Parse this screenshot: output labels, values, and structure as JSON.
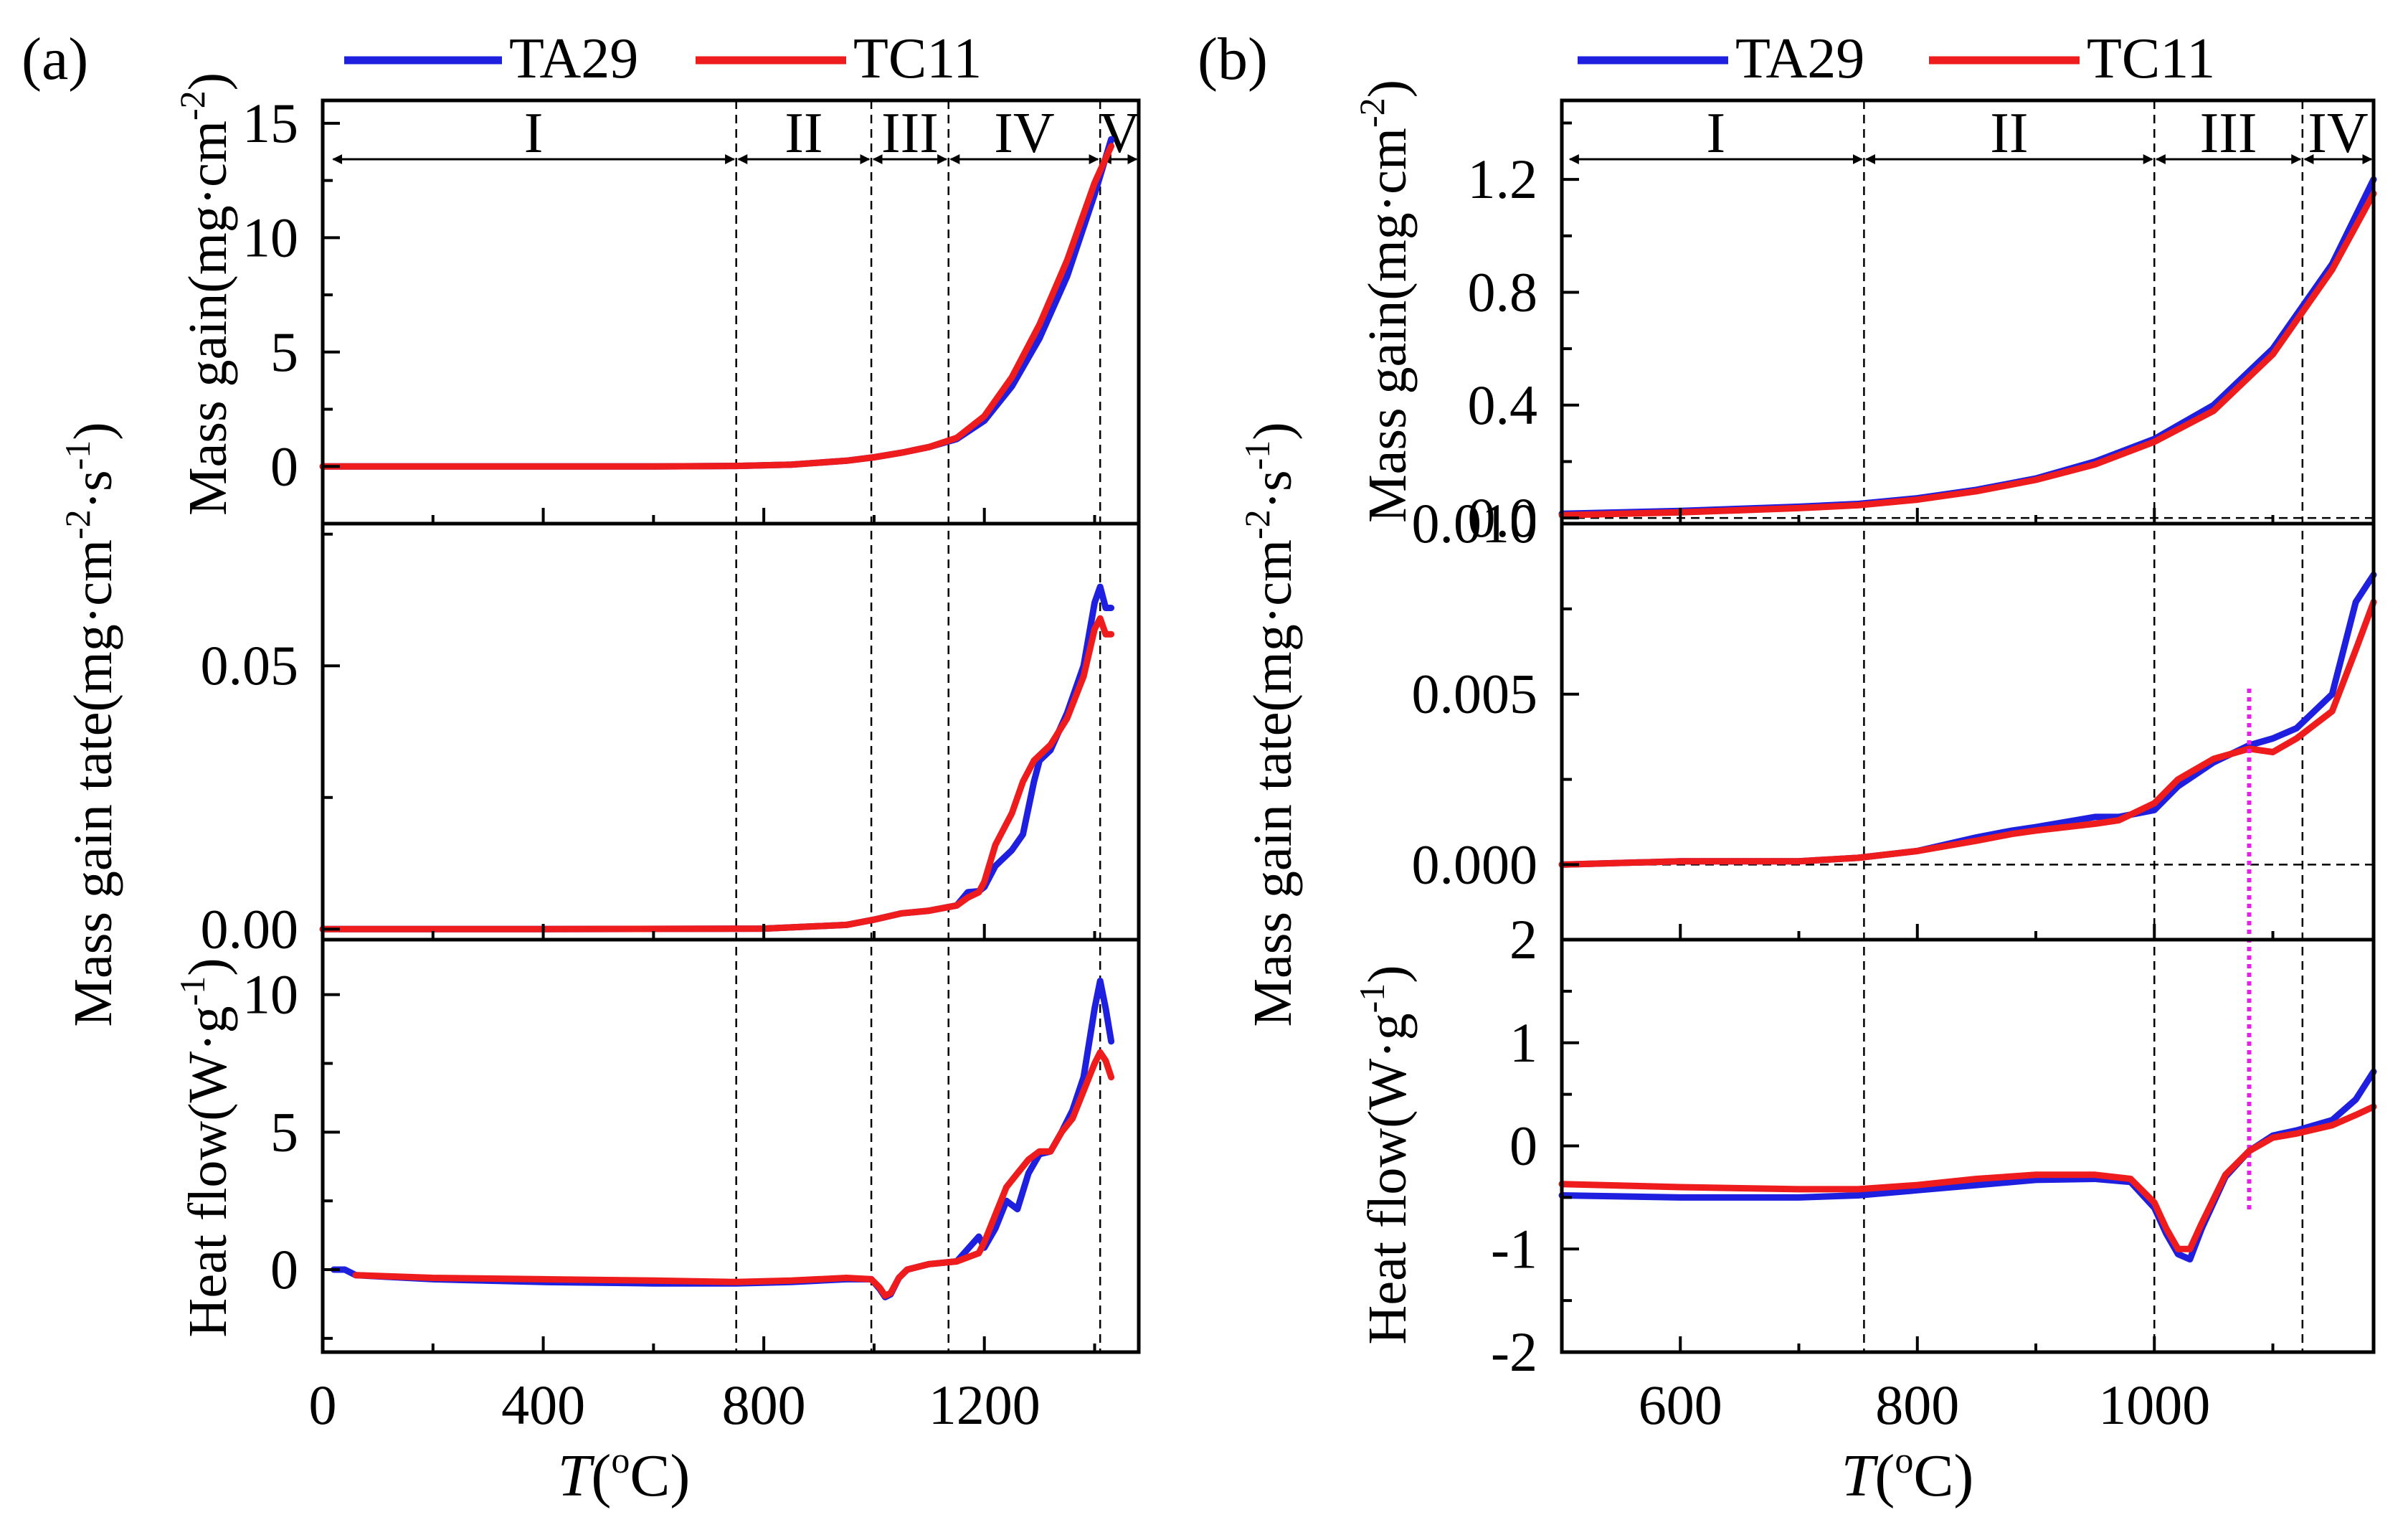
{
  "figure": {
    "panels": [
      "(a)",
      "(b)"
    ],
    "legend": [
      {
        "name": "TA29",
        "color": "#1f1fe0"
      },
      {
        "name": "TC11",
        "color": "#ee1c1c"
      }
    ],
    "superscripts": {
      "cm": "-2",
      "s": "-1",
      "g": "-1",
      "deg": "o"
    }
  },
  "chart_data": [
    {
      "id": "a",
      "type": "line",
      "panel_label": "(a)",
      "xlabel": "T(oC)",
      "xlabel_parts": {
        "italic": "T",
        "open": "(",
        "sup": "o",
        "close": "C)"
      },
      "xlim": [
        0,
        1480
      ],
      "xticks": [
        0,
        400,
        800,
        1200
      ],
      "regions": {
        "labels": [
          "I",
          "II",
          "III",
          "IV",
          "V"
        ],
        "boundaries": [
          15,
          750,
          995,
          1135,
          1410,
          1480
        ]
      },
      "subplots": [
        {
          "name": "mass-gain",
          "ylabel": "Mass gain(mg·cm-2)",
          "ylabel_parts": {
            "base": "Mass gain(mg·cm",
            "sup": "-2",
            "close": ")"
          },
          "ylim": [
            -2.5,
            16
          ],
          "yticks": [
            0,
            5,
            10,
            15
          ],
          "series": [
            {
              "name": "TA29",
              "x": [
                0,
                200,
                400,
                600,
                750,
                850,
                950,
                1000,
                1050,
                1100,
                1150,
                1200,
                1250,
                1300,
                1350,
                1400,
                1430
              ],
              "y": [
                0,
                0,
                0,
                0,
                0.02,
                0.08,
                0.25,
                0.4,
                0.6,
                0.85,
                1.2,
                2.0,
                3.5,
                5.6,
                8.3,
                11.9,
                14.3
              ]
            },
            {
              "name": "TC11",
              "x": [
                0,
                200,
                400,
                600,
                750,
                850,
                950,
                1000,
                1050,
                1100,
                1150,
                1200,
                1250,
                1300,
                1350,
                1400,
                1430
              ],
              "y": [
                0,
                0,
                0,
                0,
                0.02,
                0.08,
                0.25,
                0.4,
                0.6,
                0.85,
                1.25,
                2.2,
                3.9,
                6.2,
                9.0,
                12.4,
                14.0
              ]
            }
          ]
        },
        {
          "name": "mass-gain-rate",
          "ylabel": "Mass gain tate(mg·cm-2·s-1)",
          "ylim": [
            -0.002,
            0.077
          ],
          "yticks": [
            0.0,
            0.05
          ],
          "ytick_labels": [
            "0.00",
            "0.05"
          ],
          "series": [
            {
              "name": "TA29",
              "x": [
                0,
                400,
                800,
                950,
                1000,
                1050,
                1100,
                1150,
                1170,
                1190,
                1200,
                1220,
                1250,
                1270,
                1290,
                1300,
                1320,
                1350,
                1380,
                1400,
                1410,
                1420,
                1430
              ],
              "y": [
                0,
                0,
                0.0001,
                0.0008,
                0.0018,
                0.003,
                0.0035,
                0.0045,
                0.007,
                0.0072,
                0.008,
                0.012,
                0.015,
                0.018,
                0.028,
                0.032,
                0.034,
                0.041,
                0.05,
                0.062,
                0.065,
                0.061,
                0.061
              ]
            },
            {
              "name": "TC11",
              "x": [
                0,
                400,
                800,
                950,
                1000,
                1050,
                1100,
                1150,
                1170,
                1190,
                1200,
                1220,
                1250,
                1270,
                1290,
                1300,
                1320,
                1350,
                1380,
                1400,
                1410,
                1420,
                1430
              ],
              "y": [
                0,
                0,
                0.0001,
                0.0008,
                0.0018,
                0.003,
                0.0035,
                0.0045,
                0.006,
                0.007,
                0.009,
                0.016,
                0.022,
                0.028,
                0.032,
                0.033,
                0.035,
                0.04,
                0.048,
                0.057,
                0.059,
                0.056,
                0.056
              ]
            }
          ]
        },
        {
          "name": "heat-flow",
          "ylabel": "Heat flow(W·g-1)",
          "ylabel_parts": {
            "base": "Heat flow(W·g",
            "sup": "-1",
            "close": ")"
          },
          "ylim": [
            -3,
            12
          ],
          "yticks": [
            0,
            5,
            10
          ],
          "series": [
            {
              "name": "TA29",
              "x": [
                20,
                40,
                60,
                200,
                400,
                600,
                750,
                850,
                950,
                995,
                1010,
                1020,
                1030,
                1045,
                1060,
                1100,
                1150,
                1190,
                1200,
                1220,
                1240,
                1260,
                1280,
                1300,
                1320,
                1340,
                1360,
                1380,
                1400,
                1410,
                1420,
                1430
              ],
              "y": [
                0,
                0,
                -0.2,
                -0.35,
                -0.45,
                -0.5,
                -0.5,
                -0.45,
                -0.35,
                -0.35,
                -0.7,
                -1.0,
                -0.9,
                -0.3,
                0.0,
                0.2,
                0.3,
                1.2,
                0.8,
                1.5,
                2.5,
                2.2,
                3.5,
                4.2,
                4.3,
                5.0,
                5.8,
                7.0,
                9.5,
                10.5,
                9.5,
                8.3
              ]
            },
            {
              "name": "TC11",
              "x": [
                60,
                200,
                400,
                600,
                750,
                850,
                950,
                995,
                1010,
                1020,
                1030,
                1045,
                1060,
                1100,
                1150,
                1190,
                1200,
                1220,
                1240,
                1260,
                1280,
                1300,
                1320,
                1340,
                1360,
                1380,
                1400,
                1410,
                1420,
                1430
              ],
              "y": [
                -0.2,
                -0.3,
                -0.35,
                -0.4,
                -0.45,
                -0.4,
                -0.3,
                -0.35,
                -0.65,
                -0.95,
                -0.85,
                -0.3,
                0.0,
                0.2,
                0.3,
                0.6,
                1.0,
                2.0,
                3.0,
                3.5,
                4.0,
                4.3,
                4.3,
                5.0,
                5.5,
                6.5,
                7.5,
                7.9,
                7.6,
                7.0
              ]
            }
          ]
        }
      ]
    },
    {
      "id": "b",
      "type": "line",
      "panel_label": "(b)",
      "xlabel": "T(oC)",
      "xlim": [
        500,
        1185
      ],
      "xticks": [
        600,
        800,
        1000
      ],
      "regions": {
        "labels": [
          "I",
          "II",
          "III",
          "IV"
        ],
        "boundaries": [
          505,
          755,
          1000,
          1125,
          1185
        ]
      },
      "subplots": [
        {
          "name": "mass-gain",
          "ylabel": "Mass gain(mg·cm-2)",
          "ylim": [
            -0.02,
            1.48
          ],
          "yticks": [
            0.0,
            0.4,
            0.8,
            1.2
          ],
          "ytick_labels": [
            "0.0",
            "0.4",
            "0.8",
            "1.2"
          ],
          "reference_line": 0.0,
          "series": [
            {
              "name": "TA29",
              "x": [
                500,
                600,
                700,
                750,
                800,
                850,
                900,
                950,
                1000,
                1050,
                1100,
                1150,
                1185
              ],
              "y": [
                0.015,
                0.025,
                0.04,
                0.05,
                0.07,
                0.1,
                0.14,
                0.2,
                0.28,
                0.4,
                0.6,
                0.9,
                1.2
              ]
            },
            {
              "name": "TC11",
              "x": [
                500,
                600,
                700,
                750,
                800,
                850,
                900,
                950,
                1000,
                1050,
                1100,
                1150,
                1185
              ],
              "y": [
                0.01,
                0.02,
                0.035,
                0.045,
                0.065,
                0.095,
                0.135,
                0.19,
                0.27,
                0.38,
                0.58,
                0.88,
                1.15
              ]
            }
          ]
        },
        {
          "name": "mass-gain-rate",
          "ylabel": "Mass gain tate(mg·cm-2·s-1)",
          "ylim": [
            -0.0022,
            0.01
          ],
          "yticks": [
            0.0,
            0.005,
            0.01
          ],
          "ytick_labels": [
            "0.000",
            "0.005",
            "0.010"
          ],
          "reference_line": 0.0,
          "marker_line_x": 1080,
          "series": [
            {
              "name": "TA29",
              "x": [
                500,
                600,
                700,
                750,
                800,
                850,
                880,
                900,
                950,
                970,
                1000,
                1020,
                1050,
                1080,
                1100,
                1120,
                1150,
                1170,
                1185
              ],
              "y": [
                0,
                0.0001,
                0.0001,
                0.0002,
                0.0004,
                0.0008,
                0.001,
                0.0011,
                0.0014,
                0.0014,
                0.0016,
                0.0023,
                0.003,
                0.0035,
                0.0037,
                0.004,
                0.005,
                0.0077,
                0.0085
              ]
            },
            {
              "name": "TC11",
              "x": [
                500,
                600,
                700,
                750,
                800,
                850,
                880,
                900,
                950,
                970,
                1000,
                1020,
                1050,
                1080,
                1100,
                1120,
                1150,
                1170,
                1185
              ],
              "y": [
                0,
                0.0001,
                0.0001,
                0.0002,
                0.0004,
                0.0007,
                0.0009,
                0.001,
                0.0012,
                0.0013,
                0.0018,
                0.0025,
                0.0031,
                0.0034,
                0.0033,
                0.0037,
                0.0045,
                0.0063,
                0.0077
              ]
            }
          ]
        },
        {
          "name": "heat-flow",
          "ylabel": "Heat flow(W·g-1)",
          "ylim": [
            -2.0,
            2.0
          ],
          "yticks": [
            -2,
            -1,
            0,
            1,
            2
          ],
          "series": [
            {
              "name": "TA29",
              "x": [
                500,
                600,
                700,
                750,
                800,
                850,
                900,
                950,
                980,
                1000,
                1010,
                1020,
                1030,
                1040,
                1060,
                1080,
                1100,
                1120,
                1150,
                1170,
                1185
              ],
              "y": [
                -0.48,
                -0.5,
                -0.5,
                -0.48,
                -0.43,
                -0.38,
                -0.33,
                -0.32,
                -0.35,
                -0.6,
                -0.85,
                -1.05,
                -1.1,
                -0.8,
                -0.3,
                -0.05,
                0.1,
                0.15,
                0.25,
                0.45,
                0.72
              ]
            },
            {
              "name": "TC11",
              "x": [
                500,
                600,
                700,
                750,
                800,
                850,
                900,
                950,
                980,
                1000,
                1010,
                1020,
                1030,
                1040,
                1060,
                1080,
                1100,
                1120,
                1150,
                1170,
                1185
              ],
              "y": [
                -0.37,
                -0.4,
                -0.42,
                -0.42,
                -0.38,
                -0.32,
                -0.28,
                -0.28,
                -0.32,
                -0.55,
                -0.8,
                -1.0,
                -1.0,
                -0.75,
                -0.28,
                -0.05,
                0.08,
                0.12,
                0.2,
                0.3,
                0.38
              ]
            }
          ]
        }
      ]
    }
  ]
}
